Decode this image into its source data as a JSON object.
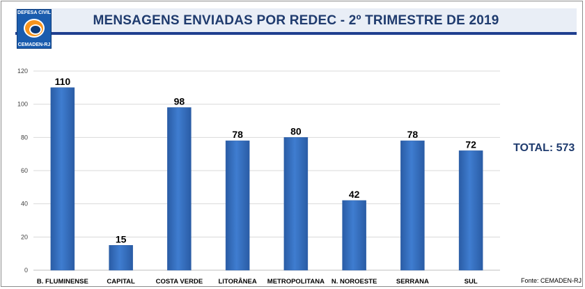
{
  "header": {
    "title": "MENSAGENS ENVIADAS POR REDEC - 2º TRIMESTRE DE 2019",
    "logo_top_text": "DEFESA CIVIL",
    "logo_bottom_text": "CEMADEN-RJ"
  },
  "summary": {
    "total": "TOTAL: 573"
  },
  "footer": {
    "source": "Fonte: CEMADEN-RJ"
  },
  "colors": {
    "bar": "#3f7dd0",
    "bar_dark": "#2a5ca5",
    "title_text": "#1f3b6e",
    "title_rule": "#1f3f8f"
  },
  "chart_data": {
    "type": "bar",
    "title": "MENSAGENS ENVIADAS POR REDEC - 2º TRIMESTRE DE 2019",
    "categories": [
      "B. FLUMINENSE",
      "CAPITAL",
      "COSTA VERDE",
      "LITORÂNEA",
      "METROPOLITANA",
      "N. NOROESTE",
      "SERRANA",
      "SUL"
    ],
    "values": [
      110,
      15,
      98,
      78,
      80,
      42,
      78,
      72
    ],
    "ylim": [
      0,
      120
    ],
    "yticks": [
      0,
      20,
      40,
      60,
      80,
      100,
      120
    ],
    "xlabel": "",
    "ylabel": "",
    "grid": true,
    "legend": "none",
    "data_labels": true
  }
}
